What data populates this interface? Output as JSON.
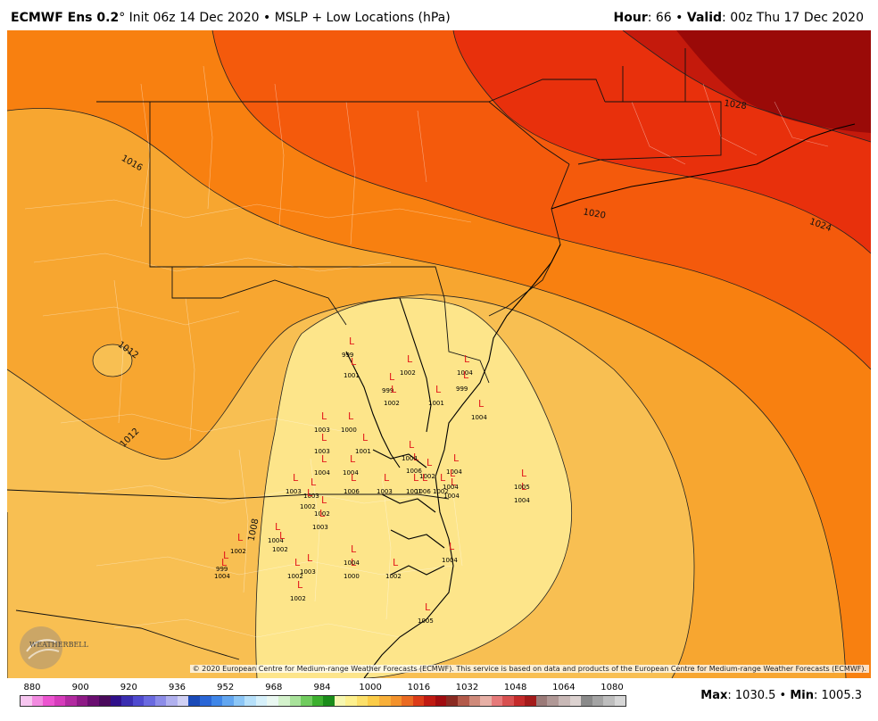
{
  "header": {
    "model": "ECMWF Ens 0.2",
    "degree": "°",
    "init": "Init 06z 14 Dec 2020",
    "bullet": "•",
    "product": "MSLP + Low Locations (hPa)",
    "hour_label": "Hour",
    "hour_value": ": 66",
    "valid_label": "Valid",
    "valid_value": ": 00z Thu 17 Dec 2020"
  },
  "isobars": [
    "1008",
    "1012",
    "1012",
    "1016",
    "1020",
    "1024",
    "1028"
  ],
  "lows": {
    "marker": "L",
    "pressures": [
      "999",
      "1001",
      "1002",
      "999",
      "1004",
      "999",
      "1001",
      "1002",
      "1004",
      "1006",
      "1000",
      "1003",
      "1001",
      "1003",
      "1004",
      "1004",
      "1004",
      "1004",
      "1002",
      "1006",
      "1002",
      "1001",
      "1003",
      "1004",
      "1004",
      "1006",
      "1003",
      "1003",
      "1002",
      "1002",
      "1004",
      "1003",
      "1002",
      "999",
      "1002",
      "1003",
      "1002",
      "1005",
      "1000",
      "1004",
      "1002",
      "1004",
      "1002",
      "1004",
      "1004",
      "1005"
    ]
  },
  "copyright": "© 2020 European Centre for Medium-range Weather Forecasts (ECMWF). This service is based on data and products of the European Centre for Medium-range Weather Forecasts (ECMWF).",
  "logo": "WEATHERBELL",
  "scale": {
    "labels": [
      "880",
      "900",
      "920",
      "936",
      "952",
      "968",
      "984",
      "1000",
      "1016",
      "1032",
      "1048",
      "1064",
      "1080"
    ],
    "colors": [
      "#f7c6f0",
      "#f28ae0",
      "#ec54d0",
      "#d63cbb",
      "#b22aa0",
      "#8e1a86",
      "#6a0e70",
      "#4a0a5c",
      "#30108a",
      "#3a2db0",
      "#4f4acf",
      "#6a6ae0",
      "#8c8ce8",
      "#b0b0ee",
      "#d0d0f4",
      "#1a4ab8",
      "#2a66d6",
      "#3f86e8",
      "#62a6f0",
      "#8cc6f6",
      "#b6e0fa",
      "#d6f0fa",
      "#eaf8f2",
      "#d4f2cc",
      "#a8e29a",
      "#70cc5e",
      "#3cb02e",
      "#1a8c1a",
      "#f6f7b0",
      "#fdf08e",
      "#fce06a",
      "#fbcc48",
      "#f8b03a",
      "#f3922c",
      "#ea6a22",
      "#dc3c18",
      "#c01a12",
      "#a00c10",
      "#8a2a22",
      "#b35a4a",
      "#cf8a7a",
      "#e7b0a6",
      "#e67a7a",
      "#d85050",
      "#c42a2a",
      "#a31a1a",
      "#9b7a78",
      "#b09896",
      "#c8b8b6",
      "#dcd2d0",
      "#8a8a8a",
      "#a4a4a4",
      "#bebebe",
      "#d6d6d6"
    ]
  },
  "stats": {
    "max_label": "Max",
    "max_value": ": 1030.5",
    "bullet": "•",
    "min_label": "Min",
    "min_value": ": 1005.3"
  }
}
